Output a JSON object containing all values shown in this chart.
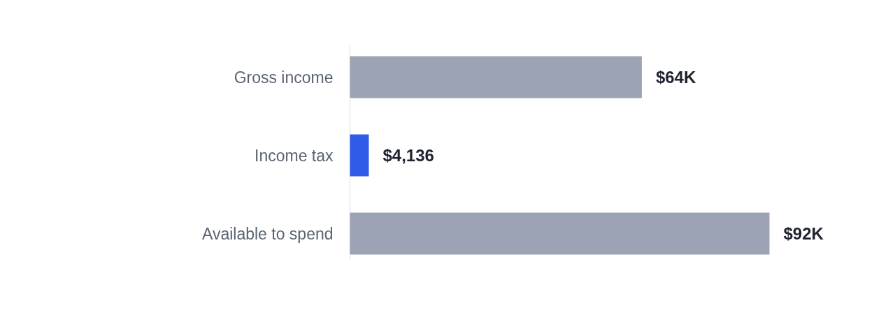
{
  "chart_data": {
    "type": "bar",
    "orientation": "horizontal",
    "categories": [
      "Gross income",
      "Income tax",
      "Available to spend"
    ],
    "values": [
      64000,
      4136,
      92000
    ],
    "colors": [
      "#9ba3b4",
      "#2f5be8",
      "#9ba3b4"
    ],
    "value_labels": [
      "$64K",
      "$4,136",
      "$92K"
    ]
  }
}
